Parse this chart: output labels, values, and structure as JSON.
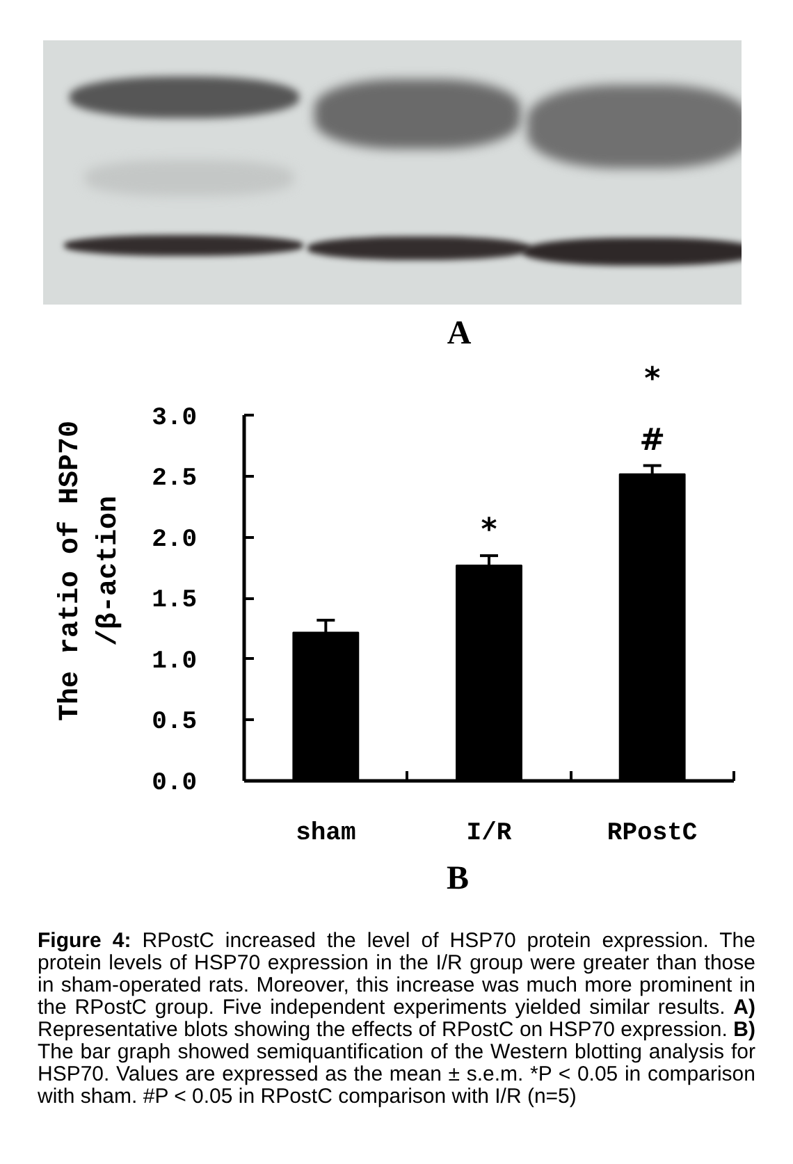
{
  "chart_data": {
    "type": "bar",
    "categories": [
      "sham",
      "I/R",
      "RPostC"
    ],
    "values": [
      1.22,
      1.77,
      2.52
    ],
    "errors": [
      0.1,
      0.08,
      0.07
    ],
    "color": "#000000",
    "ylim": [
      0,
      3.0
    ],
    "yticks": [
      {
        "value": 0,
        "label": "0.0"
      },
      0.5,
      {
        "value": 1,
        "label": "1.0"
      },
      1.5,
      {
        "value": 2,
        "label": "2.0"
      },
      2.5,
      {
        "value": 3,
        "label": "3.0"
      }
    ],
    "ylabel": "The ratio of HSP70\n/β-action",
    "grid": false,
    "annotations": [
      "*",
      "#",
      "*",
      "A",
      "B",
      "Figure 4: RPostC increased the level of HSP70 protein expression. The protein levels of HSP70 expression in the I/R group were greater than those in sham-operated rats. Moreover, this increase was much more prominent in the RPostC group. Five independent experiments yielded similar results. A) Representative blots showing the effects of RPostC on HSP70 expression. B) The bar graph showed semiquantification of the Western blotting analysis for HSP70. Values are expressed as the mean ± s.e.m. *P < 0.05 in comparison with sham. #P < 0.05 in RPostC comparison with I/R (n=5)"
    ]
  }
}
